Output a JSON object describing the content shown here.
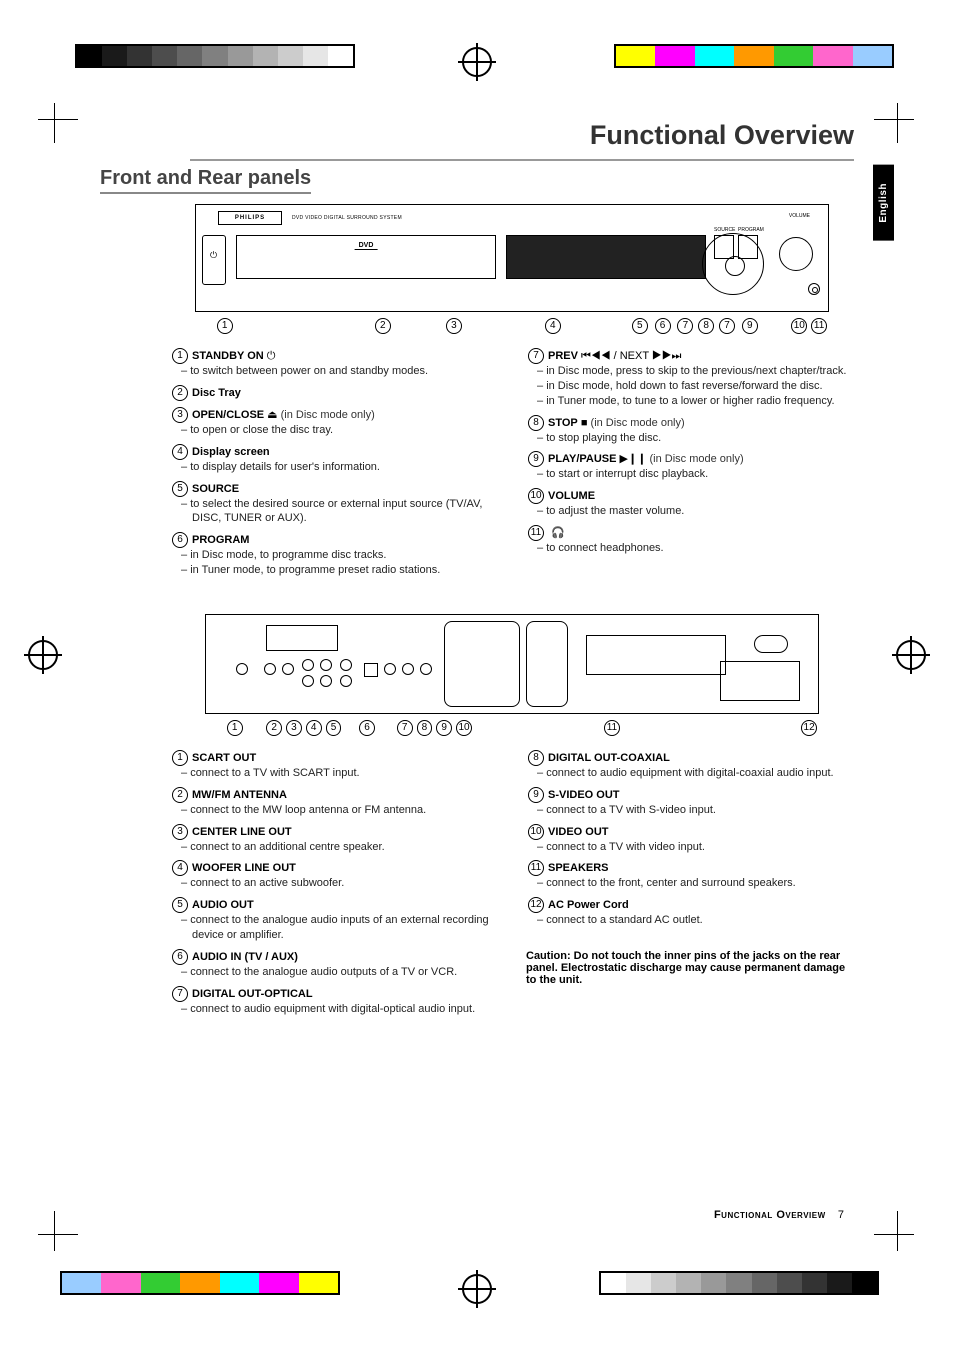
{
  "lang_tab": "English",
  "page_title": "Functional Overview",
  "section_title": "Front and Rear panels",
  "footer_label": "Functional Overview",
  "page_number": "7",
  "crop_colors_bw": [
    "#000000",
    "#1a1a1a",
    "#333333",
    "#4d4d4d",
    "#666666",
    "#808080",
    "#999999",
    "#b3b3b3",
    "#cccccc",
    "#e6e6e6",
    "#ffffff"
  ],
  "crop_colors_c": [
    "#ffff00",
    "#ff00ff",
    "#00ffff",
    "#ff9900",
    "#33cc33",
    "#ff66cc",
    "#99ccff"
  ],
  "front_panel_text": {
    "brand": "PHILIPS",
    "subtitle": "DVD VIDEO DIGITAL SURROUND SYSTEM",
    "dvd": "DVD",
    "open_close": "OPEN/CLOSE",
    "volume": "VOLUME",
    "source": "SOURCE",
    "program": "PROGRAM",
    "standby": "STANDBY\nON"
  },
  "front_callouts": [
    "1",
    "2",
    "3",
    "4",
    "5",
    "6",
    "7",
    "8",
    "7",
    "9",
    "10",
    "11"
  ],
  "rear_callouts": [
    "1",
    "2",
    "3",
    "4",
    "5",
    "6",
    "7",
    "8",
    "9",
    "10",
    "11",
    "12"
  ],
  "front_left": [
    {
      "n": "1",
      "title": "STANDBY ON",
      "sym": "⏻",
      "desc": [
        "to switch between power on and standby modes."
      ]
    },
    {
      "n": "2",
      "title": "Disc Tray",
      "desc": []
    },
    {
      "n": "3",
      "title": "OPEN/CLOSE",
      "sym": "⏏",
      "suffix": " (in Disc mode only)",
      "desc": [
        "to open or close the disc tray."
      ]
    },
    {
      "n": "4",
      "title": "Display screen",
      "desc": [
        "to display details for user's information."
      ]
    },
    {
      "n": "5",
      "title": "SOURCE",
      "desc": [
        "to select the desired source or external input source (TV/AV, DISC, TUNER or AUX)."
      ]
    },
    {
      "n": "6",
      "title": "PROGRAM",
      "desc": [
        "in Disc mode, to programme disc tracks.",
        "in Tuner mode, to programme preset radio stations."
      ]
    }
  ],
  "front_right": [
    {
      "n": "7",
      "title": "PREV",
      "sym": "⏮◀◀ / NEXT  ▶▶⏭",
      "pre": " ",
      "desc": [
        "in Disc mode, press to skip to the previous/next chapter/track.",
        "in Disc mode, hold down to fast reverse/forward the disc.",
        "in Tuner mode, to tune to a lower or higher radio frequency."
      ]
    },
    {
      "n": "8",
      "title": "STOP",
      "sym": "■",
      "suffix": "  (in Disc mode only)",
      "desc": [
        "to stop playing the disc."
      ]
    },
    {
      "n": "9",
      "title": "PLAY/PAUSE",
      "sym": "▶❙❙",
      "suffix": " (in Disc mode only)",
      "desc": [
        "to start or interrupt disc playback."
      ]
    },
    {
      "n": "10",
      "title": "VOLUME",
      "desc": [
        "to adjust the master volume."
      ]
    },
    {
      "n": "11",
      "title": "",
      "sym": "🎧",
      "desc": [
        "to connect headphones."
      ]
    }
  ],
  "rear_left": [
    {
      "n": "1",
      "title": "SCART OUT",
      "desc": [
        "connect to a TV with SCART input."
      ]
    },
    {
      "n": "2",
      "title": "MW/FM ANTENNA",
      "desc": [
        "connect to the MW loop antenna or FM antenna."
      ]
    },
    {
      "n": "3",
      "title": "CENTER LINE OUT",
      "desc": [
        "connect to an additional centre speaker."
      ]
    },
    {
      "n": "4",
      "title": "WOOFER LINE OUT",
      "desc": [
        "connect to an active subwoofer."
      ]
    },
    {
      "n": "5",
      "title": "AUDIO OUT",
      "desc": [
        "connect to the analogue audio inputs of an external recording device or amplifier."
      ]
    },
    {
      "n": "6",
      "title": "AUDIO IN (TV / AUX)",
      "desc": [
        "connect to the analogue audio outputs of a TV or VCR."
      ]
    },
    {
      "n": "7",
      "title": "DIGITAL OUT-OPTICAL",
      "desc": [
        "connect to audio equipment with digital-optical audio input."
      ]
    }
  ],
  "rear_right": [
    {
      "n": "8",
      "title": "DIGITAL OUT-COAXIAL",
      "desc": [
        "connect to audio equipment with digital-coaxial audio input."
      ]
    },
    {
      "n": "9",
      "title": "S-VIDEO OUT",
      "desc": [
        "connect to a TV with S-video input."
      ]
    },
    {
      "n": "10",
      "title": "VIDEO OUT",
      "desc": [
        "connect to a TV with video input."
      ]
    },
    {
      "n": "11",
      "title": "SPEAKERS",
      "desc": [
        "connect to the front, center and surround speakers."
      ]
    },
    {
      "n": "12",
      "title": "AC Power Cord",
      "desc": [
        "connect to a standard AC outlet."
      ]
    }
  ],
  "caution": "Caution: Do not touch the inner pins of the jacks on the rear panel. Electrostatic discharge may cause permanent damage to the unit."
}
